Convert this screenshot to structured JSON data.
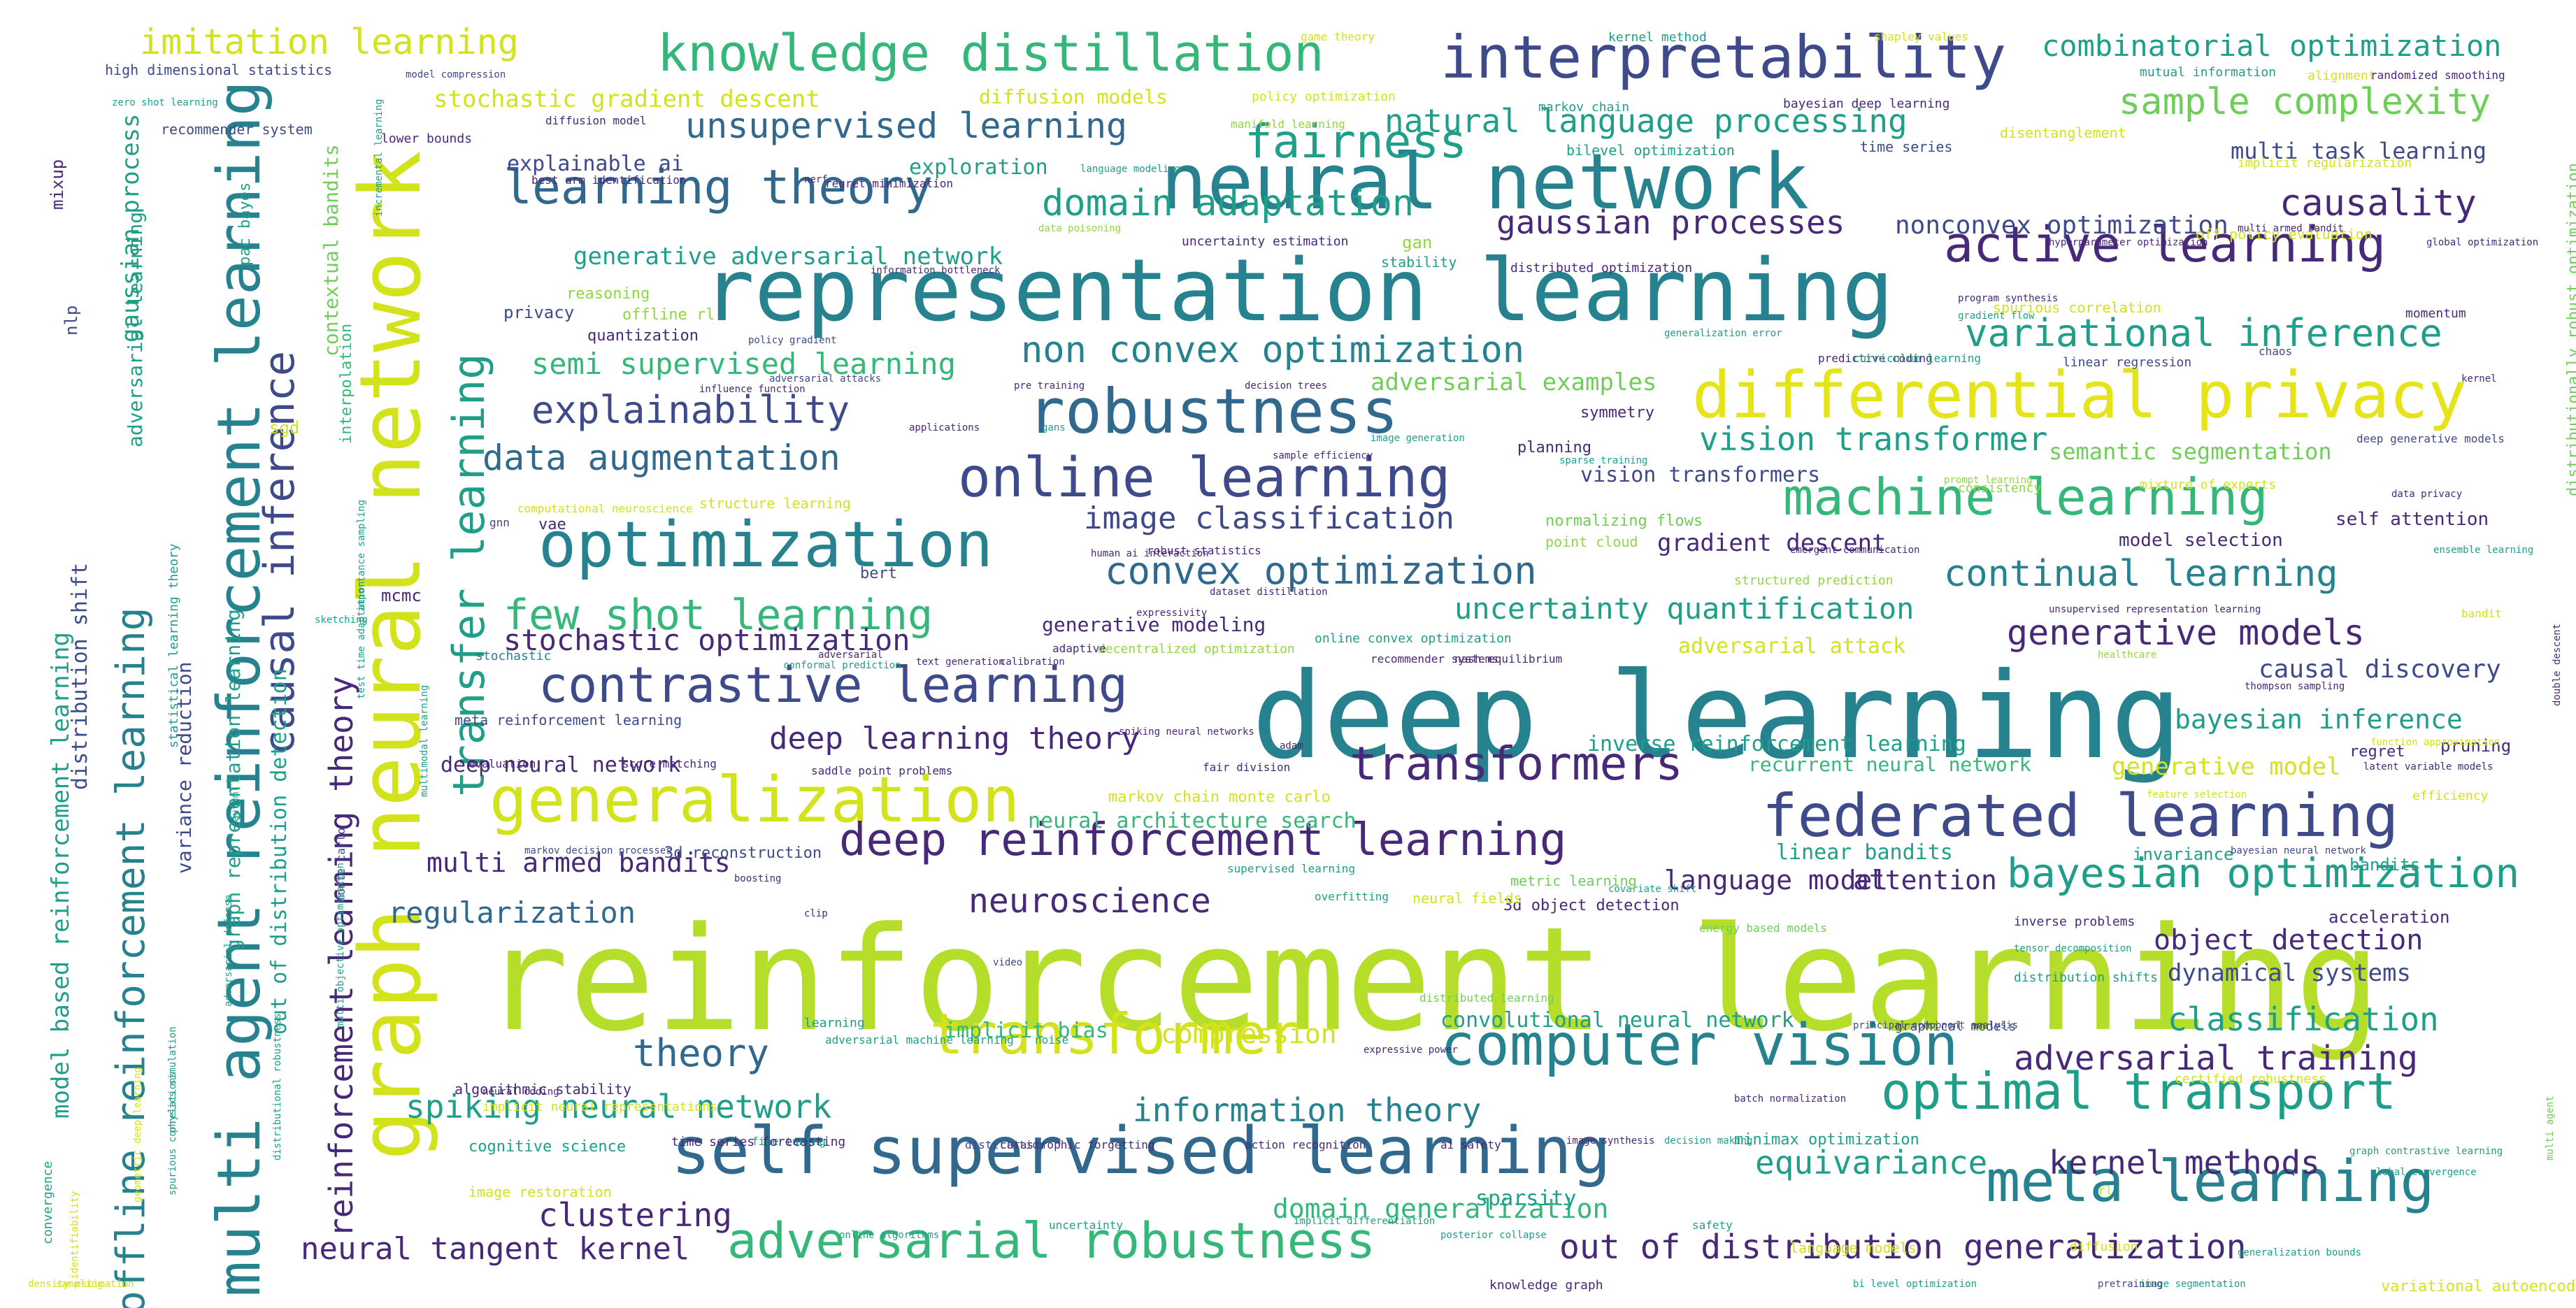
{
  "palette": {
    "lime": "#b5de2b",
    "yellowgreen": "#d2e21b",
    "yellow": "#e5e419",
    "green": "#6ece58",
    "lightgreen": "#90d743",
    "teal": "#1f9e89",
    "cyan": "#26828e",
    "blue": "#31688e",
    "indigo": "#3e4a89",
    "purple": "#482878",
    "darkpurple": "#440154",
    "seagreen": "#35b779"
  },
  "words": [
    "reinforcement learning",
    "deep learning",
    "graph neural network",
    "representation learning",
    "neural network",
    "differential privacy",
    "multi agent reinforcement learning",
    "self supervised learning",
    "federated learning",
    "computer vision",
    "optimization",
    "robustness",
    "generalization",
    "meta learning",
    "interpretability",
    "transformer",
    "adversarial robustness",
    "contrastive learning",
    "online learning",
    "machine learning",
    "knowledge distillation",
    "optimal transport",
    "active learning",
    "deep reinforcement learning",
    "causal inference",
    "transfer learning",
    "offline reinforcement learning",
    "fairness",
    "transformers",
    "learning theory",
    "few shot learning",
    "bayesian optimization",
    "variational inference",
    "explainability",
    "convex optimization",
    "domain adaptation",
    "non convex optimization",
    "unsupervised learning",
    "sample complexity",
    "continual learning",
    "imitation learning",
    "natural language processing",
    "data augmentation",
    "generative models",
    "gaussian processes",
    "adversarial training",
    "spiking neural network",
    "out of distribution generalization",
    "theory",
    "causality",
    "image classification",
    "neuroscience",
    "clustering",
    "regularization",
    "information theory",
    "reinforcement learning theory",
    "kernel methods",
    "equivariance",
    "combinatorial optimization",
    "stochastic optimization",
    "vision transformer",
    "semi supervised learning",
    "neural tangent kernel",
    "deep learning theory",
    "object detection",
    "uncertainty quantification",
    "classification",
    "attention",
    "model based reinforcement learning",
    "language model",
    "bayesian inference",
    "causal discovery",
    "generative adversarial network",
    "domain generalization",
    "stochastic gradient descent",
    "multi armed bandits",
    "compression",
    "nonconvex optimization",
    "gaussian process",
    "neural architecture search",
    "adversarial examples",
    "semantic segmentation",
    "gradient descent",
    "dynamical systems",
    "explainable ai",
    "diffusion models",
    "vision transformers",
    "out of distribution detection",
    "recurrent neural network",
    "convolutional neural network",
    "inverse reinforcement learning",
    "implicit bias",
    "multi task learning",
    "generative model",
    "adversarial attack",
    "stochastic",
    "graph representation learning",
    "variance reduction",
    "distribution shift",
    "adversarial learning",
    "contextual bandits",
    "interpolation",
    "sparsity",
    "exploration",
    "deep neural network",
    "generative modeling",
    "high dimensional statistics",
    "statistical learning theory",
    "meta reinforcement learning",
    "linear bandits",
    "quantization",
    "privacy",
    "reasoning",
    "offline rl",
    "mcmc",
    "sgd",
    "gan",
    "bert",
    "vae",
    "nlp",
    "mixup",
    "pac bayes",
    "self attention",
    "model selection",
    "pruning",
    "regret",
    "acceleration",
    "invariance",
    "bandits",
    "symmetry",
    "planning",
    "point cloud",
    "normalizing flows",
    "3d reconstruction",
    "markov chain monte carlo",
    "minimax optimization",
    "cognitive science",
    "image restoration",
    "algorithmic stability",
    "implicit neural representations",
    "fine tuning",
    "catastrophic forgetting",
    "3d object detection",
    "neural fields",
    "consistency",
    "mixture of experts",
    "inverse problems",
    "distribution shifts",
    "online convex optimization",
    "decentralized optimization",
    "uncertainty estimation",
    "bilevel optimization",
    "structured prediction",
    "language models",
    "supervised learning",
    "time series",
    "manifold learning",
    "mutual information",
    "alignment",
    "implicit regularization",
    "off policy evaluation",
    "disentanglement",
    "policy optimization",
    "bayesian deep learning",
    "markov chain",
    "kernel method",
    "game theory",
    "shapley values",
    "randomized smoothing",
    "recommender system",
    "zero shot learning",
    "model compression",
    "lower bounds",
    "best arm identification",
    "regret minimization",
    "language modeling",
    "diffusion model",
    "information bottleneck",
    "stability",
    "distributed optimization",
    "hyperparameter optimization",
    "global optimization",
    "multi armed bandit",
    "data poisoning",
    "program synthesis",
    "spurious correlation",
    "gradient flow",
    "generalization error",
    "predictive coding",
    "curriculum learning",
    "linear regression",
    "momentum",
    "chaos",
    "kernel",
    "deep generative models",
    "prompt learning",
    "data privacy",
    "ensemble learning",
    "emergent communication",
    "unsupervised representation learning",
    "healthcare",
    "thompson sampling",
    "double descent",
    "function approximation",
    "latent variable models",
    "feature selection",
    "efficiency",
    "bayesian neural network",
    "tensor decomposition",
    "certified robustness",
    "graph contrastive learning",
    "global convergence",
    "generalization bounds",
    "variational autoencoder",
    "image segmentation",
    "pretraining",
    "bi level optimization",
    "knowledge graph",
    "safety",
    "diffusion",
    "rl",
    "principal component analysis",
    "covariate shift",
    "metric learning",
    "energy based models",
    "overfitting",
    "graphical models",
    "batch normalization",
    "decision making",
    "image synthesis",
    "ai safety",
    "action recognition",
    "time series forecasting",
    "distillation",
    "uncertainty",
    "online algorithms",
    "implicit differentiation",
    "posterior collapse",
    "adversarial machine learning",
    "noise",
    "learning",
    "neural coding",
    "expressive power",
    "distributed learning",
    "clip",
    "video",
    "monte carlo",
    "automl",
    "boosting",
    "evaluation",
    "score matching",
    "saddle point problems",
    "fair division",
    "adam",
    "recommender systems",
    "nash equilibrium",
    "conformal prediction",
    "text generation",
    "calibration",
    "adaptive",
    "expressivity",
    "dataset distillation",
    "human ai interaction",
    "robust statistics",
    "adversarial",
    "image generation",
    "sparse training",
    "sample efficiency",
    "decision trees",
    "pre training",
    "gans",
    "applications",
    "influence function",
    "adversarial attacks",
    "policy gradient",
    "structure learning",
    "computational neuroscience",
    "gnn",
    "test time adaptation",
    "incremental learning",
    "nerf",
    "importance sampling",
    "sketching",
    "multimodal learning",
    "multi objective optimization",
    "distributional robustness",
    "adversarial defense",
    "physics simulation",
    "spurious correlations",
    "geometric deep learning",
    "convergence",
    "identifiability",
    "density estimation",
    "sampling",
    "distributionally robust optimization",
    "multi agent",
    "bandit",
    "markov decision processes",
    "spiking neural networks"
  ]
}
